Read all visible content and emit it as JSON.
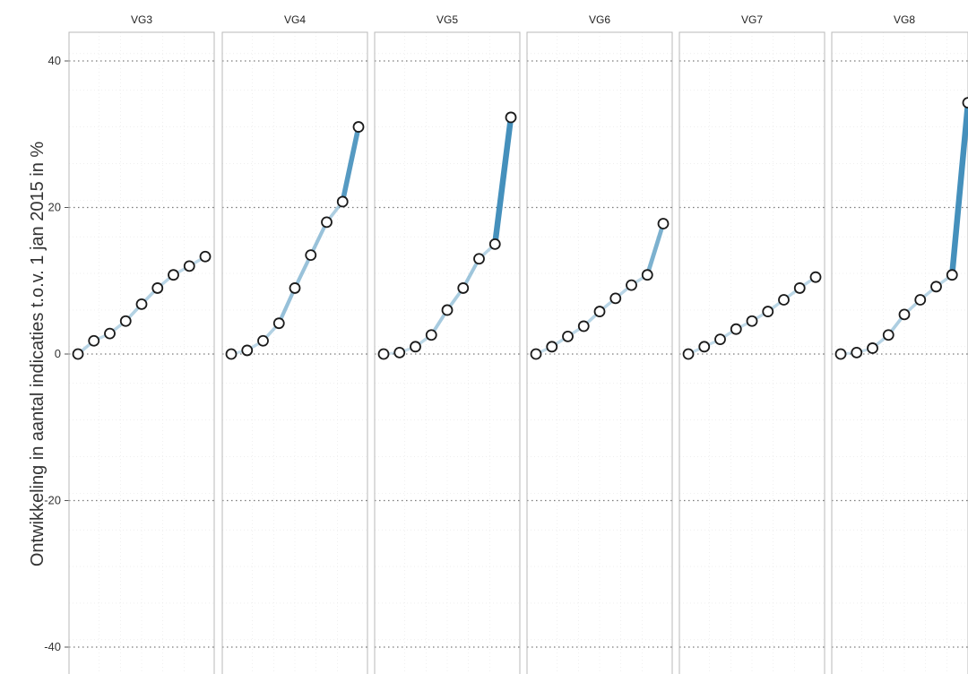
{
  "chart_data": {
    "type": "line",
    "title": "",
    "ylabel": "Ontwikkeling in aantal indicaties t.o.v. 1 jan 2015 in %",
    "xlabel": "",
    "ylim": [
      -44,
      44
    ],
    "yticks": [
      40,
      20,
      0,
      -20,
      -40
    ],
    "grid": true,
    "panels": [
      {
        "name": "VG3",
        "values": [
          0,
          1.8,
          2.8,
          4.5,
          6.8,
          9.0,
          10.8,
          12.0,
          13.3
        ]
      },
      {
        "name": "VG4",
        "values": [
          0,
          0.5,
          1.8,
          4.2,
          9.0,
          13.5,
          18.0,
          20.8,
          31.0
        ]
      },
      {
        "name": "VG5",
        "values": [
          0,
          0.2,
          1.0,
          2.6,
          6.0,
          9.0,
          13.0,
          15.0,
          32.3
        ]
      },
      {
        "name": "VG6",
        "values": [
          0,
          1.0,
          2.4,
          3.8,
          5.8,
          7.6,
          9.4,
          10.8,
          17.8
        ]
      },
      {
        "name": "VG7",
        "values": [
          0,
          1.0,
          2.0,
          3.4,
          4.5,
          5.8,
          7.4,
          9.0,
          10.5
        ]
      },
      {
        "name": "VG8",
        "values": [
          0,
          0.2,
          0.8,
          2.6,
          5.4,
          7.4,
          9.2,
          10.8,
          34.3
        ]
      }
    ]
  },
  "colors": {
    "line": "#3b8ab8",
    "marker_stroke": "#1a1a1a",
    "marker_fill": "#ffffff",
    "panel_border": "#b8b8b8",
    "grid_major": "#7a7a7a",
    "grid_minor": "#e6e6e6"
  }
}
